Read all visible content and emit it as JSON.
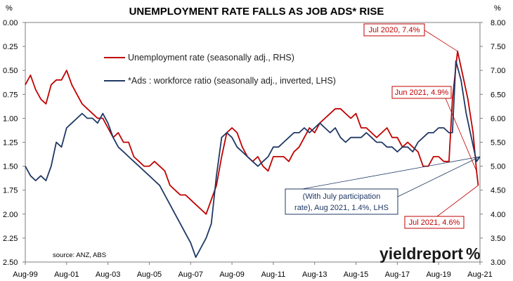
{
  "chart_data": {
    "type": "line",
    "title": "UNEMPLOYMENT RATE FALLS AS JOB ADS* RISE",
    "x_tick_labels": [
      "Aug-99",
      "Aug-01",
      "Aug-03",
      "Aug-05",
      "Aug-07",
      "Aug-09",
      "Aug-11",
      "Aug-13",
      "Aug-15",
      "Aug-17",
      "Aug-19",
      "Aug-21"
    ],
    "x_range": [
      "1999-08",
      "2021-08"
    ],
    "left_axis": {
      "unit": "%",
      "ylim": [
        0.0,
        2.5
      ],
      "inverted": true,
      "tick_labels": [
        "0.00",
        "0.25",
        "0.50",
        "0.75",
        "1.00",
        "1.25",
        "1.50",
        "1.75",
        "2.00",
        "2.25",
        "2.50"
      ]
    },
    "right_axis": {
      "unit": "%",
      "ylim": [
        3.0,
        8.0
      ],
      "tick_labels": [
        "3.00",
        "3.50",
        "4.00",
        "4.50",
        "5.00",
        "5.50",
        "6.00",
        "6.50",
        "7.00",
        "7.50",
        "8.00"
      ]
    },
    "grid": false,
    "legend_placement": "top-left",
    "colors": {
      "unemployment": "#c00000",
      "ads": "#1f3864",
      "annotation_red": "#c00000",
      "annotation_blue": "#1f3864"
    },
    "series": [
      {
        "name": "Unemployment rate (seasonally adj., RHS)",
        "axis": "right",
        "x": [
          "1999-08",
          "1999-11",
          "2000-02",
          "2000-05",
          "2000-08",
          "2000-11",
          "2001-02",
          "2001-05",
          "2001-08",
          "2001-11",
          "2002-02",
          "2002-05",
          "2002-08",
          "2002-11",
          "2003-02",
          "2003-05",
          "2003-08",
          "2003-11",
          "2004-02",
          "2004-05",
          "2004-08",
          "2004-11",
          "2005-02",
          "2005-05",
          "2005-08",
          "2005-11",
          "2006-02",
          "2006-05",
          "2006-08",
          "2006-11",
          "2007-02",
          "2007-05",
          "2007-08",
          "2007-11",
          "2008-02",
          "2008-05",
          "2008-08",
          "2008-11",
          "2009-02",
          "2009-05",
          "2009-08",
          "2009-11",
          "2010-02",
          "2010-05",
          "2010-08",
          "2010-11",
          "2011-02",
          "2011-05",
          "2011-08",
          "2011-11",
          "2012-02",
          "2012-05",
          "2012-08",
          "2012-11",
          "2013-02",
          "2013-05",
          "2013-08",
          "2013-11",
          "2014-02",
          "2014-05",
          "2014-08",
          "2014-11",
          "2015-02",
          "2015-05",
          "2015-08",
          "2015-11",
          "2016-02",
          "2016-05",
          "2016-08",
          "2016-11",
          "2017-02",
          "2017-05",
          "2017-08",
          "2017-11",
          "2018-02",
          "2018-05",
          "2018-08",
          "2018-11",
          "2019-02",
          "2019-05",
          "2019-08",
          "2019-11",
          "2020-02",
          "2020-04",
          "2020-07",
          "2020-10",
          "2021-01",
          "2021-04",
          "2021-06",
          "2021-07"
        ],
        "values": [
          6.7,
          6.9,
          6.6,
          6.4,
          6.3,
          6.7,
          6.8,
          6.8,
          7.0,
          6.7,
          6.5,
          6.3,
          6.2,
          6.1,
          6.0,
          6.0,
          5.8,
          5.6,
          5.7,
          5.5,
          5.5,
          5.2,
          5.1,
          5.0,
          5.0,
          5.1,
          5.0,
          4.9,
          4.6,
          4.5,
          4.4,
          4.4,
          4.3,
          4.2,
          4.1,
          4.0,
          4.3,
          4.6,
          5.2,
          5.7,
          5.8,
          5.7,
          5.4,
          5.2,
          5.1,
          5.2,
          5.0,
          4.9,
          5.2,
          5.2,
          5.2,
          5.1,
          5.3,
          5.4,
          5.6,
          5.8,
          5.7,
          5.9,
          6.0,
          6.1,
          6.2,
          6.2,
          6.1,
          6.0,
          6.1,
          5.8,
          5.8,
          5.7,
          5.6,
          5.7,
          5.8,
          5.6,
          5.6,
          5.4,
          5.5,
          5.4,
          5.3,
          5.0,
          5.0,
          5.2,
          5.2,
          5.1,
          5.1,
          6.4,
          7.4,
          6.9,
          6.4,
          5.7,
          4.9,
          4.6
        ]
      },
      {
        "name": "*Ads : workforce ratio (seasonally adj., inverted, LHS)",
        "axis": "left",
        "x": [
          "1999-08",
          "1999-11",
          "2000-02",
          "2000-05",
          "2000-08",
          "2000-11",
          "2001-02",
          "2001-05",
          "2001-08",
          "2001-11",
          "2002-02",
          "2002-05",
          "2002-08",
          "2002-11",
          "2003-02",
          "2003-05",
          "2003-08",
          "2003-11",
          "2004-02",
          "2004-05",
          "2004-08",
          "2004-11",
          "2005-02",
          "2005-05",
          "2005-08",
          "2005-11",
          "2006-02",
          "2006-05",
          "2006-08",
          "2006-11",
          "2007-02",
          "2007-05",
          "2007-08",
          "2007-11",
          "2008-02",
          "2008-05",
          "2008-08",
          "2008-11",
          "2009-02",
          "2009-05",
          "2009-08",
          "2009-11",
          "2010-02",
          "2010-05",
          "2010-08",
          "2010-11",
          "2011-02",
          "2011-05",
          "2011-08",
          "2011-11",
          "2012-02",
          "2012-05",
          "2012-08",
          "2012-11",
          "2013-02",
          "2013-05",
          "2013-08",
          "2013-11",
          "2014-02",
          "2014-05",
          "2014-08",
          "2014-11",
          "2015-02",
          "2015-05",
          "2015-08",
          "2015-11",
          "2016-02",
          "2016-05",
          "2016-08",
          "2016-11",
          "2017-02",
          "2017-05",
          "2017-08",
          "2017-11",
          "2018-02",
          "2018-05",
          "2018-08",
          "2018-11",
          "2019-02",
          "2019-05",
          "2019-08",
          "2019-11",
          "2020-02",
          "2020-04",
          "2020-06",
          "2020-09",
          "2020-12",
          "2021-03",
          "2021-06",
          "2021-08"
        ],
        "values": [
          1.5,
          1.6,
          1.65,
          1.6,
          1.65,
          1.5,
          1.25,
          1.3,
          1.1,
          1.05,
          1.0,
          0.95,
          1.0,
          1.0,
          1.05,
          0.95,
          1.05,
          1.2,
          1.3,
          1.35,
          1.4,
          1.45,
          1.5,
          1.55,
          1.6,
          1.65,
          1.7,
          1.8,
          1.9,
          2.0,
          2.1,
          2.2,
          2.3,
          2.45,
          2.35,
          2.25,
          2.1,
          1.6,
          1.2,
          1.15,
          1.2,
          1.3,
          1.35,
          1.4,
          1.45,
          1.5,
          1.45,
          1.4,
          1.3,
          1.3,
          1.25,
          1.2,
          1.15,
          1.15,
          1.1,
          1.15,
          1.1,
          1.05,
          1.1,
          1.15,
          1.1,
          1.2,
          1.25,
          1.2,
          1.2,
          1.2,
          1.15,
          1.2,
          1.25,
          1.25,
          1.3,
          1.3,
          1.35,
          1.3,
          1.3,
          1.35,
          1.25,
          1.2,
          1.15,
          1.15,
          1.1,
          1.1,
          1.15,
          1.15,
          0.4,
          0.6,
          0.95,
          1.2,
          1.45,
          1.4
        ]
      }
    ],
    "annotations": [
      {
        "text": "Jul 2020, 7.4%",
        "color": "red",
        "at": [
          "2020-07",
          7.4
        ],
        "axis": "right"
      },
      {
        "text": "Jun 2021, 4.9%",
        "color": "red",
        "at": [
          "2021-06",
          4.9
        ],
        "axis": "right"
      },
      {
        "text": "Jul 2021, 4.6%",
        "color": "red",
        "at": [
          "2021-07",
          4.6
        ],
        "axis": "right"
      },
      {
        "text_lines": [
          "(With July participation",
          "rate), Aug 2021, 1.4%, LHS"
        ],
        "color": "blue",
        "at": [
          "2021-08",
          1.4
        ],
        "axis": "left"
      }
    ],
    "source": "source: ANZ, ABS",
    "logo": {
      "text_main": "yield",
      "text_bold": "report",
      "symbol": "%"
    }
  }
}
